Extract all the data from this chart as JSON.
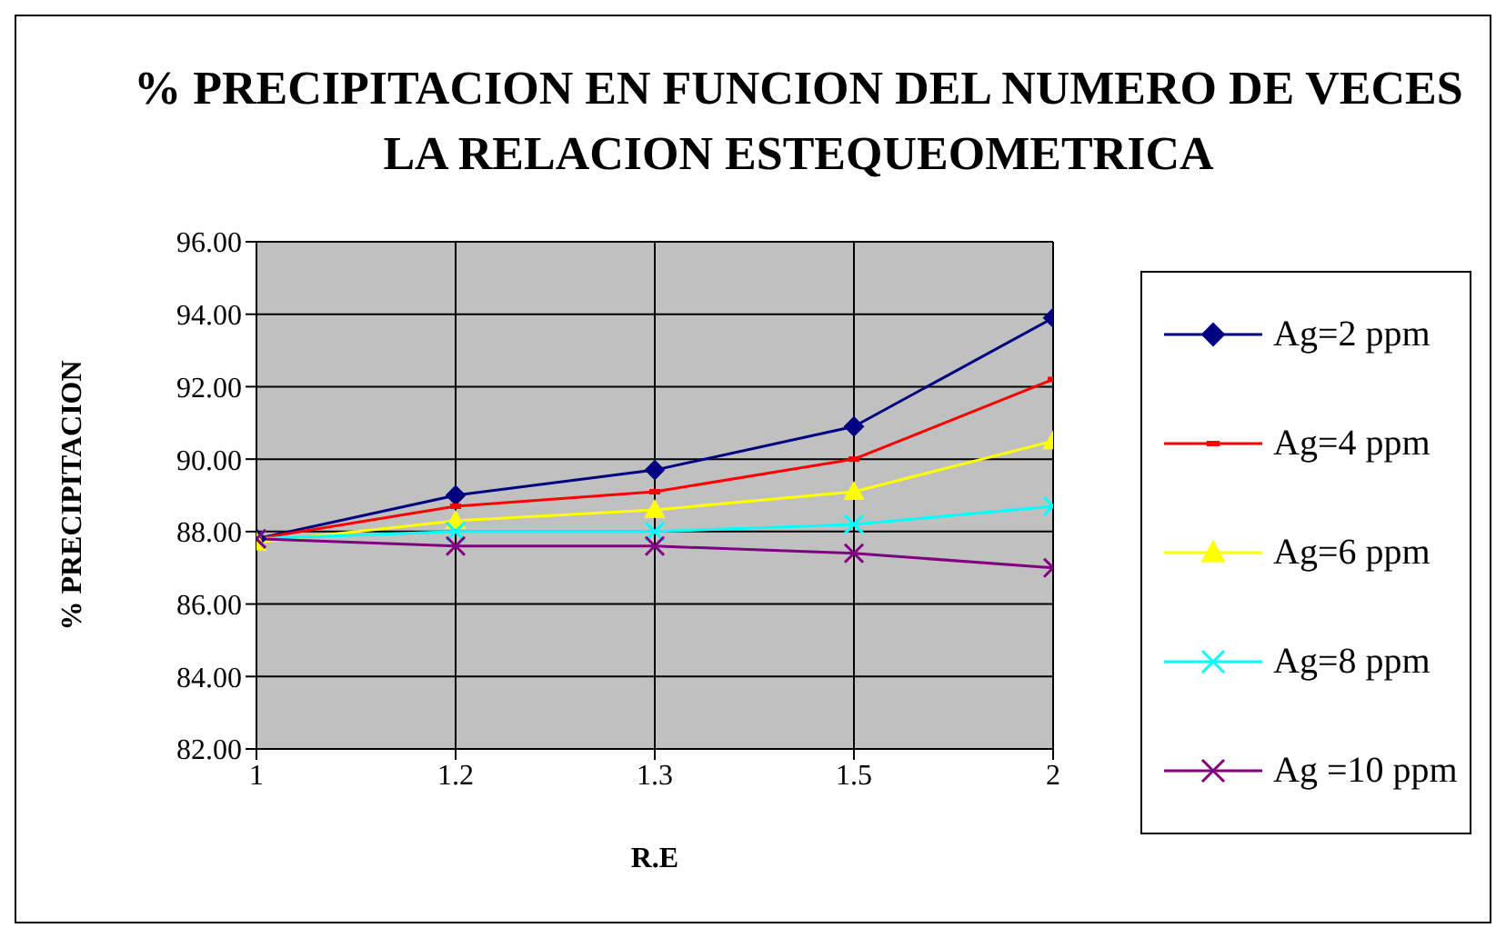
{
  "chart_data": {
    "type": "line",
    "title": "% PRECIPITACION EN FUNCION DEL NUMERO DE VECES LA RELACION ESTEQUEOMETRICA",
    "xlabel": "R.E",
    "ylabel": "% PRECIPITACION",
    "categories": [
      "1",
      "1.2",
      "1.3",
      "1.5",
      "2"
    ],
    "series": [
      {
        "name": "Ag=2 ppm",
        "color": "#000080",
        "marker": "diamond",
        "values": [
          87.8,
          89.0,
          89.7,
          90.9,
          93.9
        ]
      },
      {
        "name": "Ag=4 ppm",
        "color": "#ff0000",
        "marker": "square",
        "values": [
          87.8,
          88.7,
          89.1,
          90.0,
          92.2
        ]
      },
      {
        "name": "Ag=6 ppm",
        "color": "#ffff00",
        "marker": "triangle",
        "values": [
          87.7,
          88.3,
          88.6,
          89.1,
          90.5
        ]
      },
      {
        "name": "Ag=8 ppm",
        "color": "#00ffff",
        "marker": "cross",
        "values": [
          87.8,
          88.0,
          88.0,
          88.2,
          88.7
        ]
      },
      {
        "name": "Ag =10 ppm",
        "color": "#800080",
        "marker": "cross",
        "values": [
          87.8,
          87.6,
          87.6,
          87.4,
          87.0
        ]
      }
    ],
    "ylim": [
      82,
      96
    ],
    "yticks": [
      {
        "value": 82,
        "label": "82.00"
      },
      {
        "value": 84,
        "label": "84.00"
      },
      {
        "value": 86,
        "label": "86.00"
      },
      {
        "value": 88,
        "label": "88.00"
      },
      {
        "value": 90,
        "label": "90.00"
      },
      {
        "value": 92,
        "label": "92.00"
      },
      {
        "value": 94,
        "label": "94.00"
      },
      {
        "value": 96,
        "label": "96.00"
      }
    ],
    "grid": true,
    "legend": "right"
  }
}
